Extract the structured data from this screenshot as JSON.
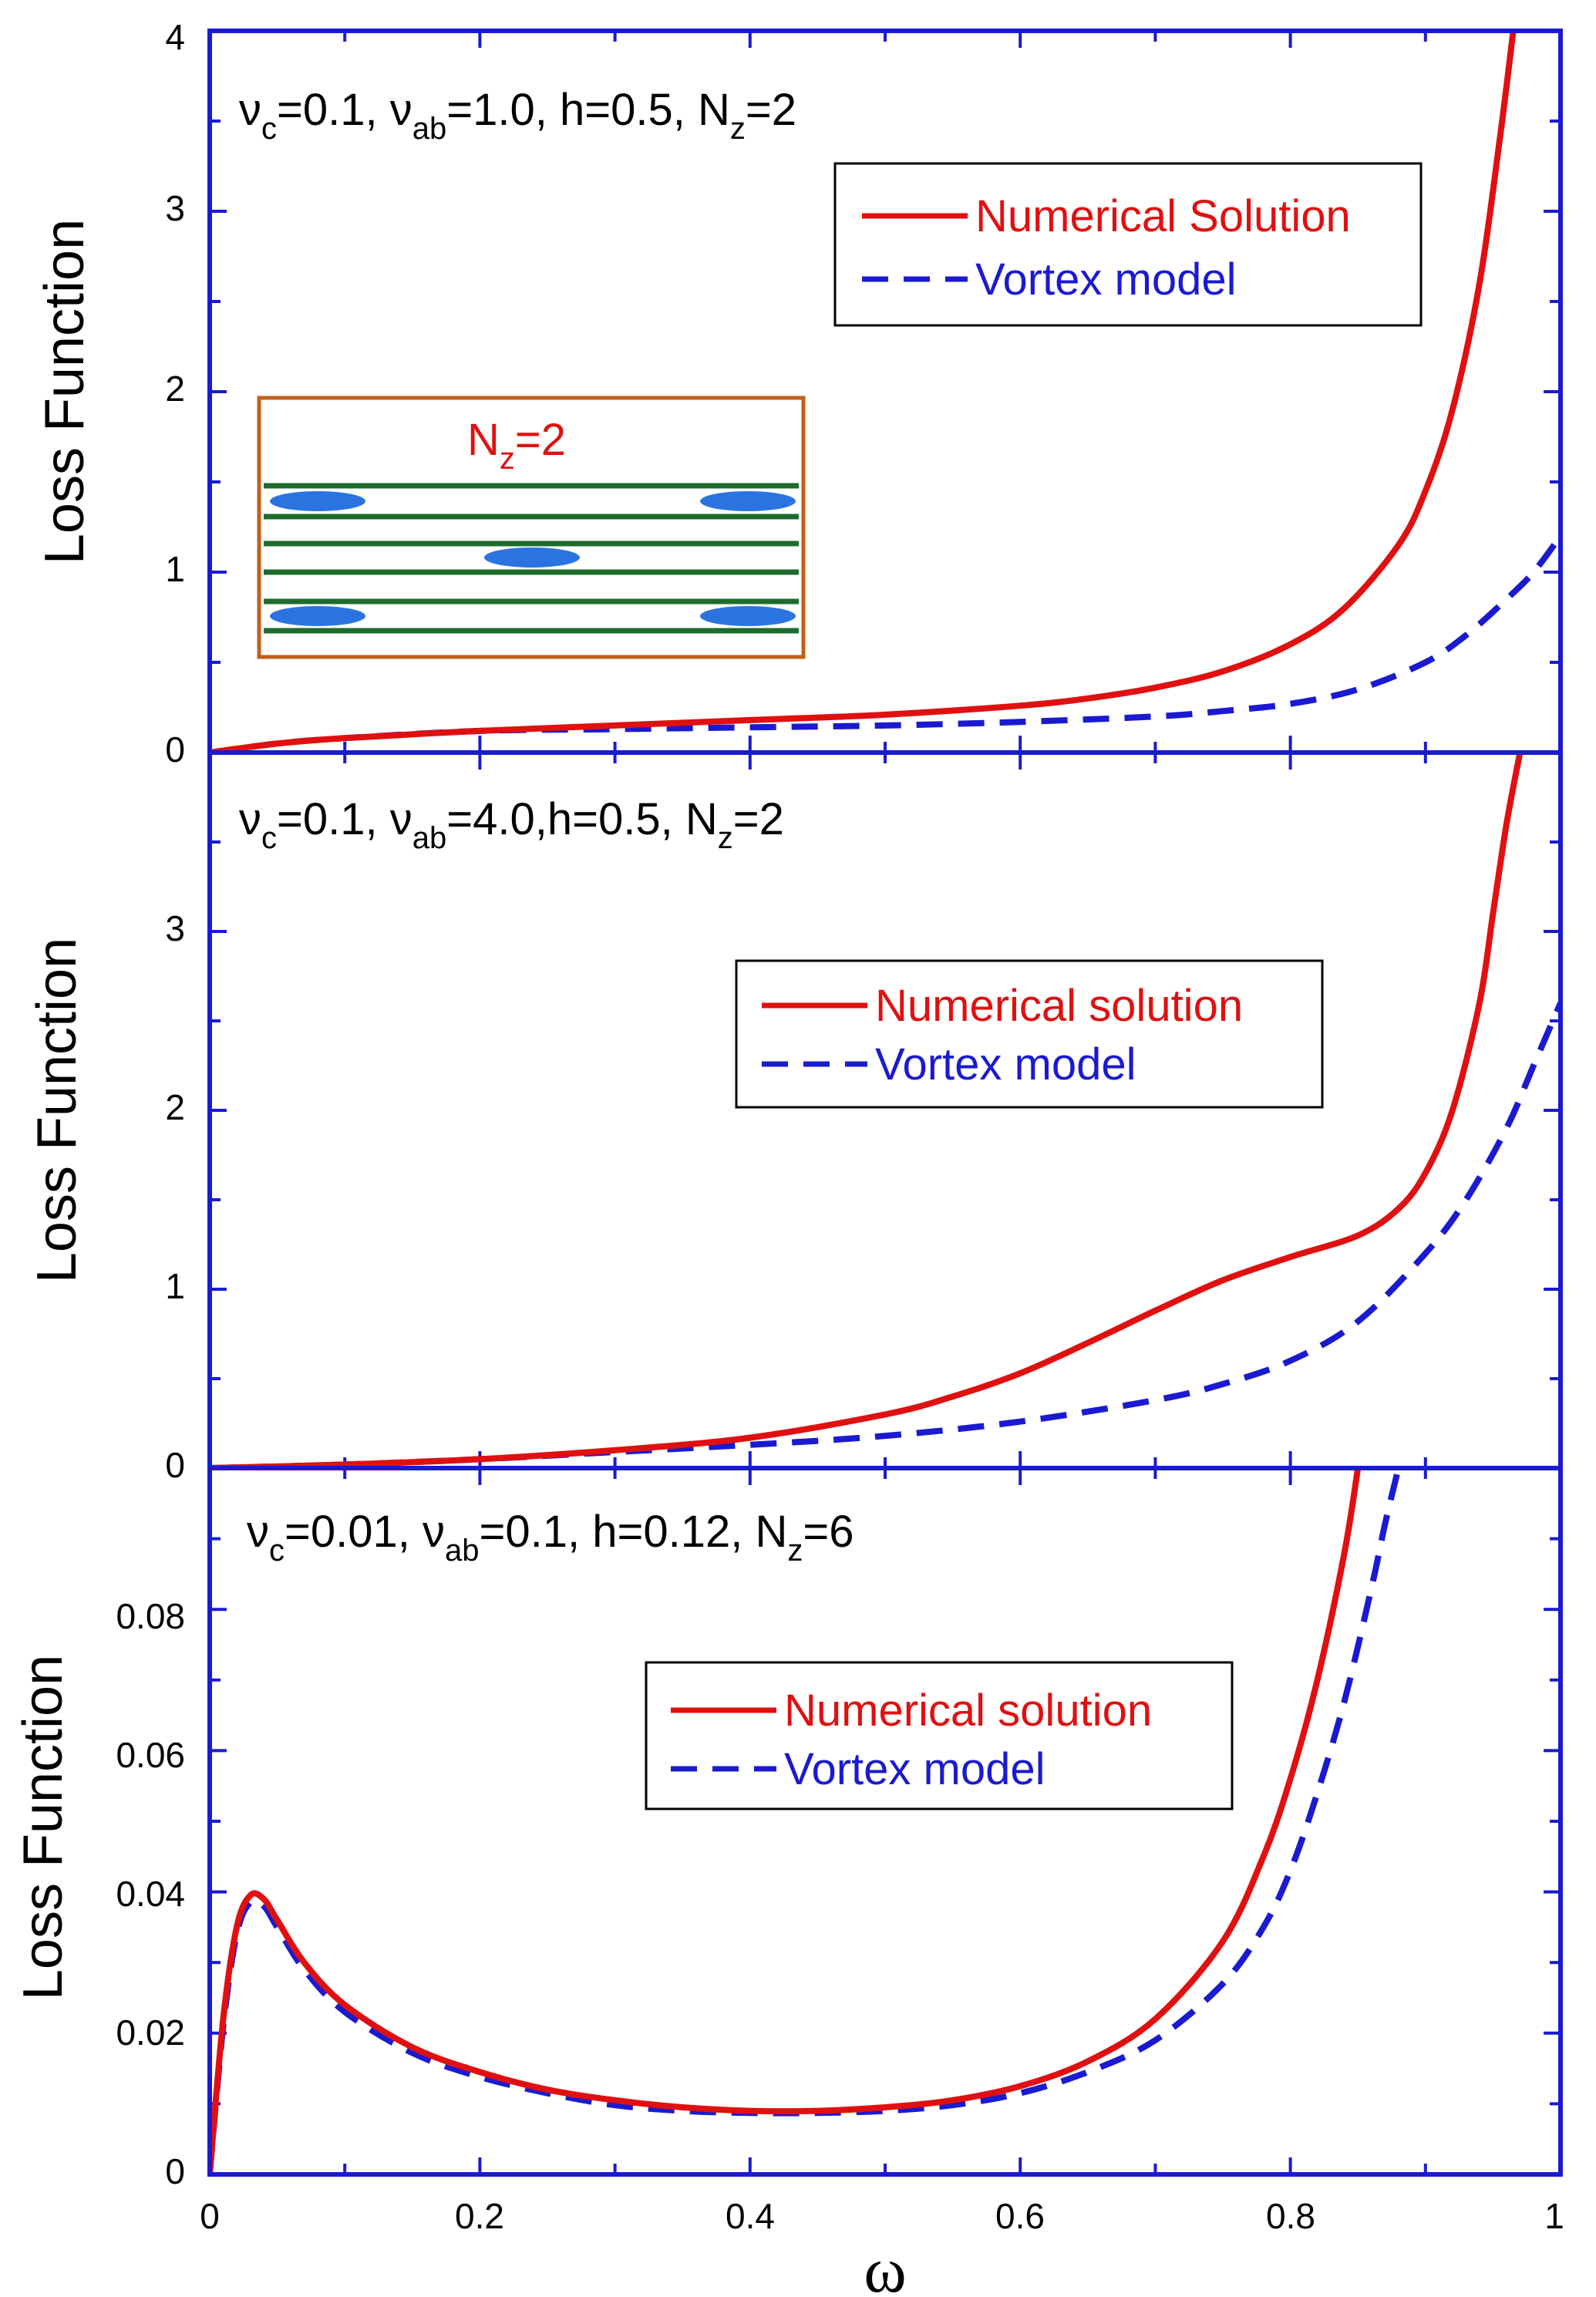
{
  "colors": {
    "axis": "#1a1ad0",
    "numerical": "#e01010",
    "vortex": "#1a1ad0",
    "inset_border": "#c0601a",
    "inset_layer": "#1e6b2e",
    "inset_vortex": "#2b74e0",
    "inset_title": "#e01010"
  },
  "x_axis": {
    "label": "ω",
    "ticks": [
      "0",
      "0.2",
      "0.4",
      "0.6",
      "0.8",
      "1"
    ]
  },
  "panels": [
    {
      "ylabel": "Loss Function",
      "y_ticks": [
        "0",
        "1",
        "2",
        "3",
        "4"
      ],
      "annotation": {
        "nu": "ν",
        "c": "c",
        "eq1": "=0.1, ",
        "ab": "ab",
        "eq2": "=1.0, h=0.5, N",
        "z": "z",
        "eq3": "=2"
      },
      "legend": {
        "numerical": "Numerical Solution",
        "vortex": "Vortex model"
      },
      "inset": {
        "N": "N",
        "z": "z",
        "eq": "=2"
      }
    },
    {
      "ylabel": "Loss Function",
      "y_ticks": [
        "0",
        "1",
        "2",
        "3"
      ],
      "annotation": {
        "nu": "ν",
        "c": "c",
        "eq1": "=0.1, ",
        "ab": "ab",
        "eq2": "=4.0,h=0.5, N",
        "z": "z",
        "eq3": "=2"
      },
      "legend": {
        "numerical": "Numerical solution",
        "vortex": "Vortex model"
      }
    },
    {
      "ylabel": "Loss Function",
      "y_ticks": [
        "0",
        "0.02",
        "0.04",
        "0.06",
        "0.08"
      ],
      "annotation": {
        "nu": "ν",
        "c": "c",
        "eq1": "=0.01, ",
        "ab": "ab",
        "eq2": "=0.1, h=0.12, N",
        "z": "z",
        "eq3": "=6"
      },
      "legend": {
        "numerical": "Numerical solution",
        "vortex": "Vortex model"
      }
    }
  ],
  "chart_data": [
    {
      "type": "line",
      "xlim": [
        0,
        1
      ],
      "ylim": [
        0,
        4
      ],
      "xlabel": "ω",
      "ylabel": "Loss Function",
      "series": [
        {
          "name": "Numerical Solution",
          "style": "solid",
          "x": [
            0,
            0.05,
            0.1,
            0.2,
            0.3,
            0.4,
            0.5,
            0.6,
            0.65,
            0.7,
            0.75,
            0.8,
            0.84,
            0.88,
            0.9,
            0.92,
            0.94,
            0.955,
            0.965
          ],
          "y": [
            0,
            0.05,
            0.08,
            0.12,
            0.15,
            0.18,
            0.21,
            0.26,
            0.3,
            0.36,
            0.45,
            0.6,
            0.8,
            1.15,
            1.45,
            1.9,
            2.6,
            3.4,
            4.0
          ]
        },
        {
          "name": "Vortex model",
          "style": "dashed",
          "x": [
            0,
            0.05,
            0.1,
            0.2,
            0.3,
            0.4,
            0.5,
            0.6,
            0.7,
            0.75,
            0.8,
            0.85,
            0.9,
            0.93,
            0.96,
            0.98,
            1.0
          ],
          "y": [
            0,
            0.05,
            0.08,
            0.12,
            0.13,
            0.14,
            0.15,
            0.17,
            0.2,
            0.23,
            0.27,
            0.35,
            0.5,
            0.65,
            0.85,
            1.0,
            1.2
          ]
        }
      ]
    },
    {
      "type": "line",
      "xlim": [
        0,
        1
      ],
      "ylim": [
        0,
        4
      ],
      "xlabel": "ω",
      "ylabel": "Loss Function",
      "series": [
        {
          "name": "Numerical solution",
          "style": "solid",
          "x": [
            0,
            0.1,
            0.2,
            0.3,
            0.4,
            0.5,
            0.55,
            0.6,
            0.65,
            0.7,
            0.75,
            0.8,
            0.85,
            0.88,
            0.9,
            0.92,
            0.94,
            0.95,
            0.96,
            0.97
          ],
          "y": [
            0,
            0.02,
            0.05,
            0.1,
            0.17,
            0.3,
            0.4,
            0.53,
            0.7,
            0.88,
            1.05,
            1.18,
            1.3,
            1.45,
            1.65,
            2.0,
            2.6,
            3.1,
            3.6,
            4.0
          ]
        },
        {
          "name": "Vortex model",
          "style": "dashed",
          "x": [
            0,
            0.1,
            0.2,
            0.3,
            0.4,
            0.5,
            0.6,
            0.7,
            0.75,
            0.8,
            0.85,
            0.9,
            0.93,
            0.96,
            0.98,
            1.0
          ],
          "y": [
            0,
            0.02,
            0.05,
            0.09,
            0.13,
            0.18,
            0.26,
            0.38,
            0.47,
            0.6,
            0.82,
            1.2,
            1.5,
            1.9,
            2.25,
            2.6
          ]
        }
      ]
    },
    {
      "type": "line",
      "xlim": [
        0,
        1
      ],
      "ylim": [
        0,
        0.1
      ],
      "xlabel": "ω",
      "ylabel": "Loss Function",
      "series": [
        {
          "name": "Numerical solution",
          "style": "solid",
          "x": [
            0,
            0.01,
            0.02,
            0.03,
            0.04,
            0.05,
            0.07,
            0.1,
            0.15,
            0.2,
            0.25,
            0.3,
            0.35,
            0.4,
            0.45,
            0.5,
            0.55,
            0.6,
            0.65,
            0.7,
            0.75,
            0.78,
            0.8,
            0.82,
            0.84,
            0.85
          ],
          "y": [
            0,
            0.022,
            0.035,
            0.0395,
            0.039,
            0.036,
            0.03,
            0.024,
            0.018,
            0.0145,
            0.012,
            0.0105,
            0.0095,
            0.009,
            0.009,
            0.0095,
            0.0105,
            0.0125,
            0.016,
            0.022,
            0.033,
            0.045,
            0.056,
            0.07,
            0.088,
            0.1
          ]
        },
        {
          "name": "Vortex model",
          "style": "dashed",
          "x": [
            0,
            0.01,
            0.02,
            0.03,
            0.04,
            0.05,
            0.07,
            0.1,
            0.15,
            0.2,
            0.25,
            0.3,
            0.35,
            0.4,
            0.45,
            0.5,
            0.55,
            0.6,
            0.65,
            0.7,
            0.75,
            0.78,
            0.8,
            0.82,
            0.84,
            0.86,
            0.87,
            0.88
          ],
          "y": [
            0,
            0.021,
            0.034,
            0.0385,
            0.038,
            0.035,
            0.029,
            0.023,
            0.0172,
            0.0138,
            0.0115,
            0.0098,
            0.009,
            0.0087,
            0.0087,
            0.009,
            0.0098,
            0.0115,
            0.0145,
            0.019,
            0.027,
            0.035,
            0.043,
            0.054,
            0.067,
            0.083,
            0.092,
            0.1
          ]
        }
      ]
    }
  ]
}
